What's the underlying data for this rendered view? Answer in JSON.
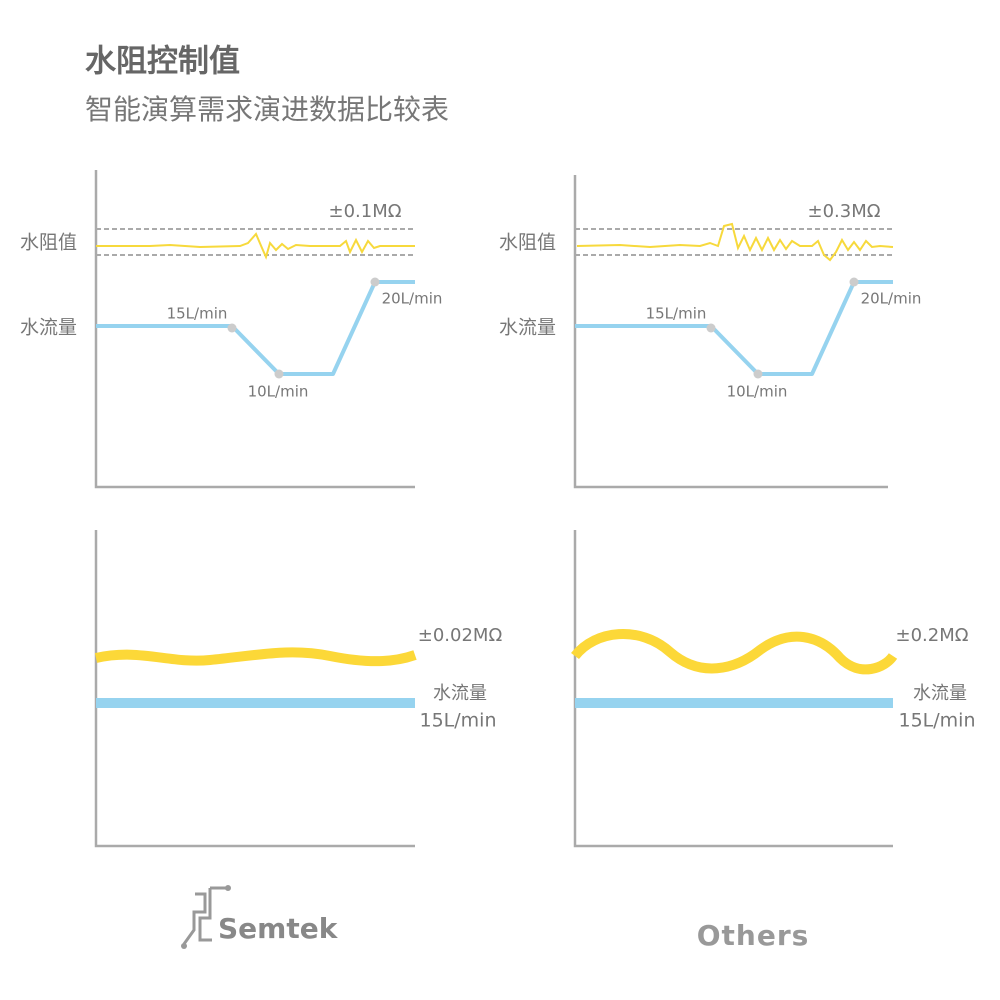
{
  "header": {
    "title": "水阻控制值",
    "subtitle": "智能演算需求演进数据比较表"
  },
  "top_panels": [
    {
      "resistance_label": "水阻值",
      "flow_label": "水流量",
      "tolerance": "±0.1MΩ",
      "flow_points": [
        "15L/min",
        "10L/min",
        "20L/min"
      ]
    },
    {
      "resistance_label": "水阻值",
      "flow_label": "水流量",
      "tolerance": "±0.3MΩ",
      "flow_points": [
        "15L/min",
        "10L/min",
        "20L/min"
      ]
    }
  ],
  "bottom_panels": [
    {
      "tolerance": "±0.02MΩ",
      "flow_label": "水流量",
      "flow_value": "15L/min"
    },
    {
      "tolerance": "±0.2MΩ",
      "flow_label": "水流量",
      "flow_value": "15L/min"
    }
  ],
  "brands": [
    "Semtek",
    "Others"
  ]
}
